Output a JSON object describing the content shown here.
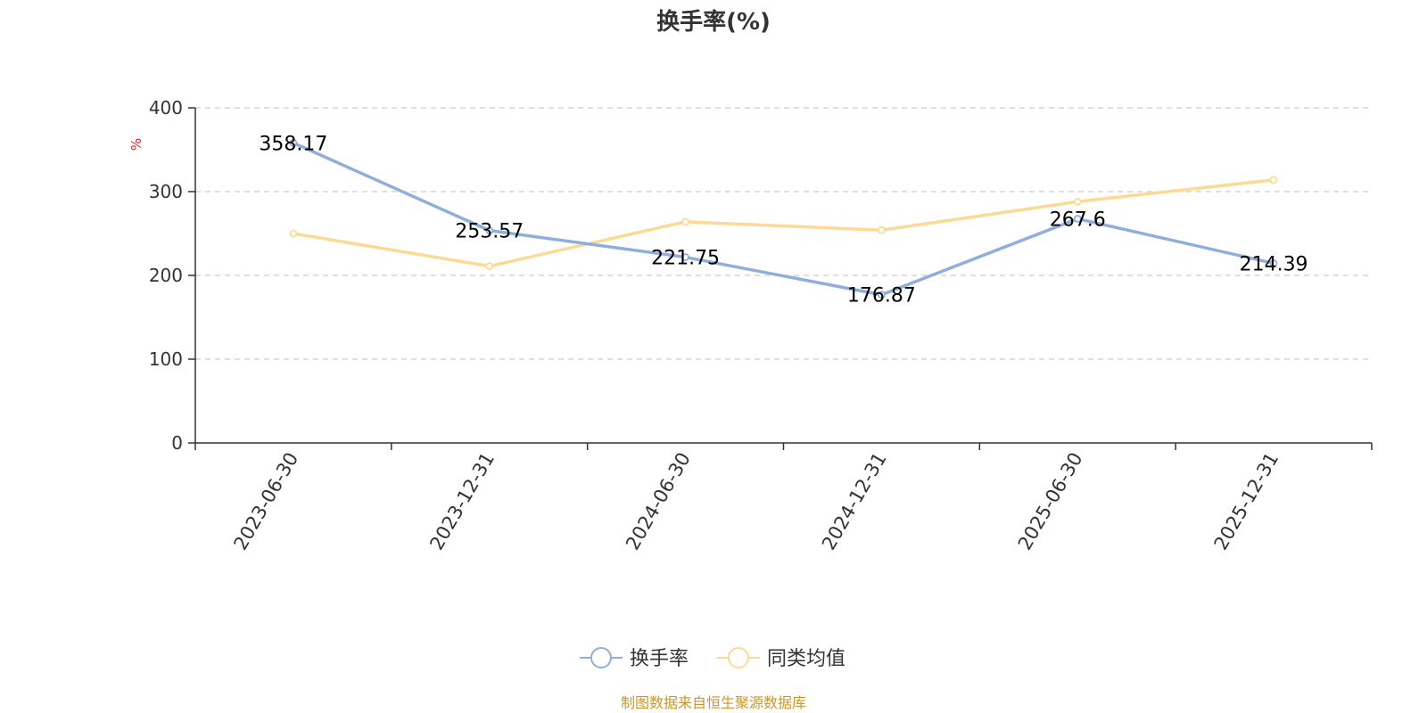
{
  "chart_data": {
    "type": "line",
    "title": "换手率(%)",
    "ylabel": "%",
    "ylim": [
      0,
      400
    ],
    "yticks": [
      0,
      100,
      200,
      300,
      400
    ],
    "grid": true,
    "categories": [
      "2023-06-30",
      "2023-12-31",
      "2024-06-30",
      "2024-12-31",
      "2025-06-30",
      "2025-12-31"
    ],
    "series": [
      {
        "name": "换手率",
        "color": "#8eaedb",
        "values": [
          358.17,
          253.57,
          221.75,
          176.87,
          267.6,
          214.39
        ],
        "labels": [
          "358.17",
          "253.57",
          "221.75",
          "176.87",
          "267.6",
          "214.39"
        ]
      },
      {
        "name": "同类均值",
        "color": "#fcd995",
        "values": [
          250,
          211,
          264,
          254,
          288,
          314
        ]
      }
    ],
    "legend_position": "bottom-center"
  },
  "source_note": "制图数据来自恒生聚源数据库"
}
